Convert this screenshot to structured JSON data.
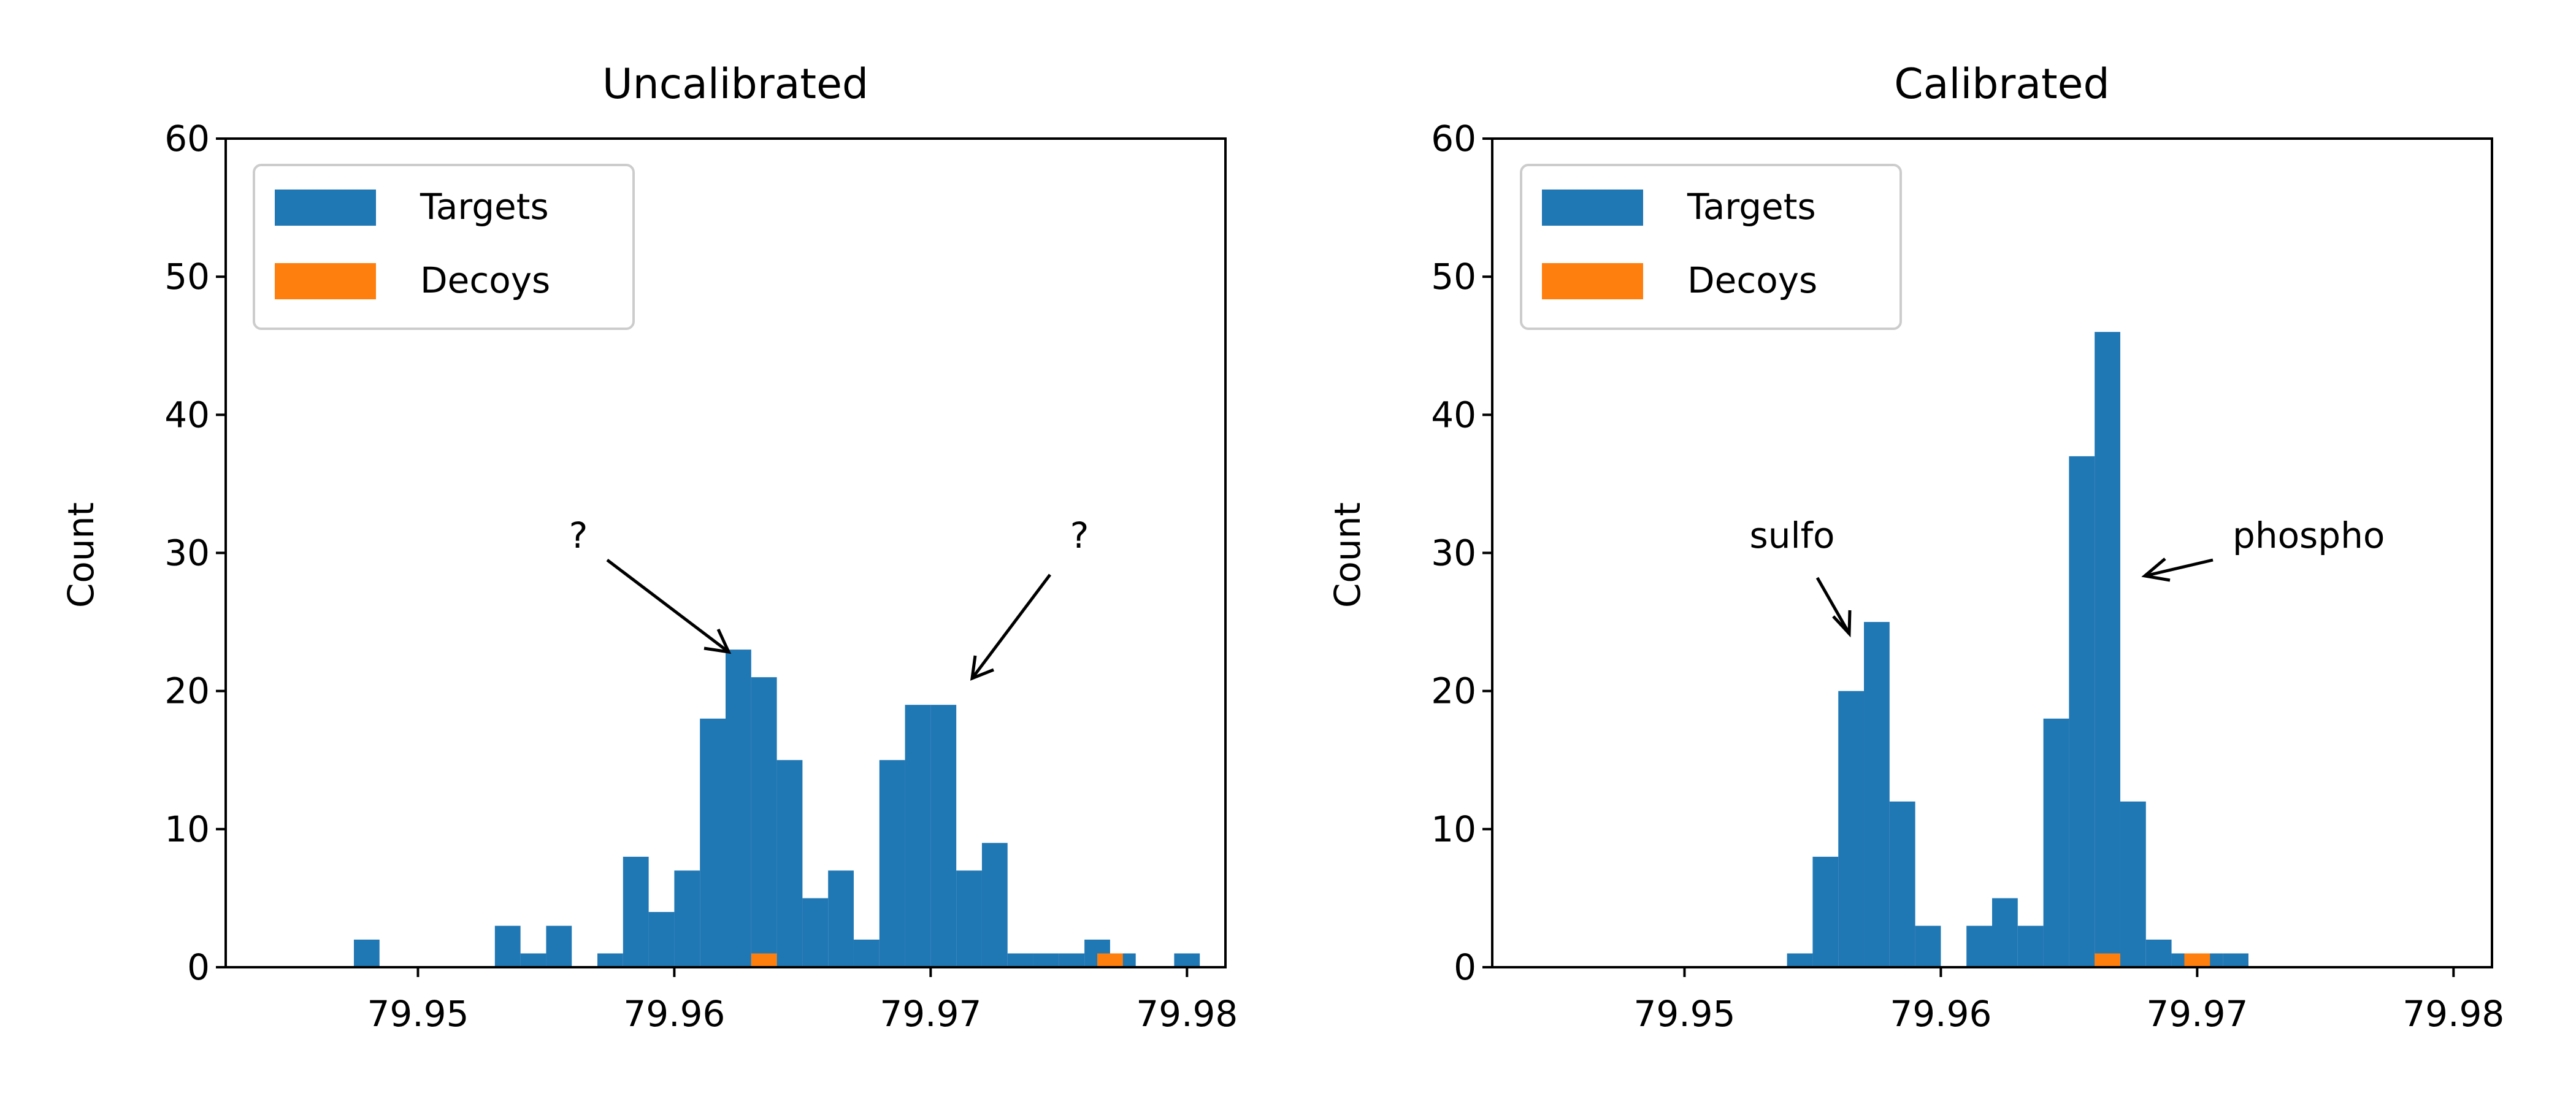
{
  "colors": {
    "targets": "#1f77b4",
    "decoys": "#ff7f0e"
  },
  "chart_data": [
    {
      "type": "bar",
      "title": "Uncalibrated",
      "xlabel": "",
      "ylabel": "Count",
      "xlim": [
        79.9425,
        79.9815
      ],
      "ylim": [
        0,
        60
      ],
      "xticks": [
        "79.95",
        "79.96",
        "79.97",
        "79.98"
      ],
      "yticks": [
        "0",
        "10",
        "20",
        "30",
        "40",
        "50",
        "60"
      ],
      "legend": {
        "placement": "upper-left",
        "entries": [
          "Targets",
          "Decoys"
        ]
      },
      "bin_width": 0.001,
      "series": [
        {
          "name": "Targets",
          "bin_left": [
            79.9475,
            79.953,
            79.954,
            79.955,
            79.957,
            79.958,
            79.959,
            79.96,
            79.961,
            79.962,
            79.963,
            79.964,
            79.965,
            79.966,
            79.967,
            79.968,
            79.969,
            79.97,
            79.971,
            79.972,
            79.973,
            79.974,
            79.975,
            79.976,
            79.977,
            79.9795
          ],
          "values": [
            2,
            3,
            1,
            3,
            1,
            8,
            4,
            7,
            18,
            23,
            21,
            15,
            5,
            7,
            2,
            15,
            19,
            19,
            7,
            9,
            1,
            1,
            1,
            2,
            1,
            1
          ]
        },
        {
          "name": "Decoys",
          "bin_left": [
            79.963,
            79.9765
          ],
          "values": [
            1,
            1
          ]
        }
      ],
      "annotations": [
        {
          "text": "?",
          "points_to": [
            79.962,
            22.5
          ]
        },
        {
          "text": "?",
          "points_to": [
            79.9705,
            20.5
          ]
        }
      ]
    },
    {
      "type": "bar",
      "title": "Calibrated",
      "xlabel": "",
      "ylabel": "Count",
      "xlim": [
        79.9425,
        79.9815
      ],
      "ylim": [
        0,
        60
      ],
      "xticks": [
        "79.95",
        "79.96",
        "79.97",
        "79.98"
      ],
      "yticks": [
        "0",
        "10",
        "20",
        "30",
        "40",
        "50",
        "60"
      ],
      "legend": {
        "placement": "upper-left",
        "entries": [
          "Targets",
          "Decoys"
        ]
      },
      "bin_width": 0.001,
      "series": [
        {
          "name": "Targets",
          "bin_left": [
            79.954,
            79.955,
            79.956,
            79.957,
            79.958,
            79.959,
            79.961,
            79.962,
            79.963,
            79.964,
            79.965,
            79.966,
            79.967,
            79.968,
            79.969,
            79.97,
            79.971
          ],
          "values": [
            1,
            8,
            20,
            25,
            12,
            3,
            3,
            5,
            3,
            18,
            37,
            46,
            12,
            2,
            1,
            1,
            1
          ]
        },
        {
          "name": "Decoys",
          "bin_left": [
            79.966,
            79.9695
          ],
          "values": [
            1,
            1
          ]
        }
      ],
      "annotations": [
        {
          "text": "sulfo",
          "points_to": [
            79.9564,
            23.8
          ]
        },
        {
          "text": "phospho",
          "points_to": [
            79.9677,
            28.2
          ]
        }
      ]
    }
  ]
}
